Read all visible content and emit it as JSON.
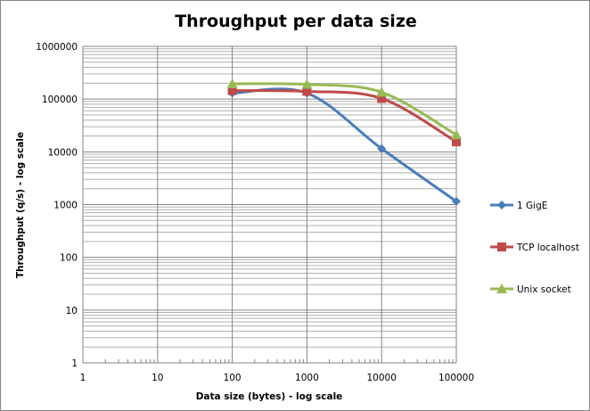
{
  "chart_data": {
    "type": "line",
    "title": "Throughput per data size",
    "xlabel": "Data size (bytes) - log scale",
    "ylabel": "Throughput (q/s) - log scale",
    "x_scale": "log",
    "y_scale": "log",
    "xlim": [
      1,
      100000
    ],
    "ylim": [
      1,
      1000000
    ],
    "x_ticks": [
      "1",
      "10",
      "100",
      "1000",
      "10000",
      "100000"
    ],
    "y_ticks": [
      "1",
      "10",
      "100",
      "1000",
      "10000",
      "100000",
      "1000000"
    ],
    "grid": true,
    "smoothed": true,
    "legend_position": "right",
    "x": [
      100,
      1000,
      10000,
      100000
    ],
    "series": [
      {
        "name": "1 GigE",
        "values": [
          130000,
          130000,
          11500,
          1150
        ],
        "color": "#4a7ebb",
        "marker": "diamond"
      },
      {
        "name": "TCP localhost",
        "values": [
          145000,
          140000,
          103000,
          15500
        ],
        "color": "#be4b48",
        "marker": "square"
      },
      {
        "name": "Unix socket",
        "values": [
          195000,
          190000,
          135000,
          21000
        ],
        "color": "#98b954",
        "marker": "triangle"
      }
    ]
  }
}
